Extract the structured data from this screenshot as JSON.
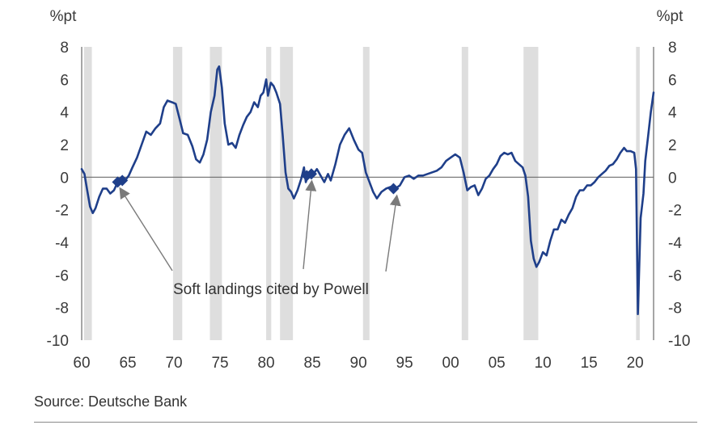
{
  "chart_data": {
    "type": "line",
    "title": "",
    "ylabel_left": "%pt",
    "ylabel_right": "%pt",
    "xlabel": "",
    "ylim": [
      -10,
      8
    ],
    "xlim": [
      1960,
      2022
    ],
    "y_ticks": [
      8,
      6,
      4,
      2,
      0,
      -2,
      -4,
      -6,
      -8,
      -10
    ],
    "y_tick_labels": [
      "8",
      "6",
      "4",
      "2",
      "0",
      "-2",
      "-4",
      "-6",
      "-8",
      "-10"
    ],
    "x_ticks": [
      1960,
      1965,
      1970,
      1975,
      1980,
      1985,
      1990,
      1995,
      2000,
      2005,
      2010,
      2015,
      2020
    ],
    "x_tick_labels": [
      "60",
      "65",
      "70",
      "75",
      "80",
      "85",
      "90",
      "95",
      "00",
      "05",
      "10",
      "15",
      "20"
    ],
    "line_color": "#1f3f8a",
    "recession_color": "#dedede",
    "recessions": [
      [
        1960.25,
        1961.1
      ],
      [
        1969.9,
        1970.9
      ],
      [
        1973.9,
        1975.2
      ],
      [
        1980.0,
        1980.55
      ],
      [
        1981.5,
        1982.9
      ],
      [
        1990.5,
        1991.2
      ],
      [
        2001.2,
        2001.9
      ],
      [
        2007.9,
        2009.5
      ],
      [
        2020.1,
        2020.5
      ]
    ],
    "series": [
      {
        "values": [
          [
            1960.0,
            0.5
          ],
          [
            1960.3,
            0.2
          ],
          [
            1960.6,
            -0.8
          ],
          [
            1960.9,
            -1.8
          ],
          [
            1961.2,
            -2.2
          ],
          [
            1961.5,
            -1.9
          ],
          [
            1961.9,
            -1.2
          ],
          [
            1962.3,
            -0.7
          ],
          [
            1962.7,
            -0.7
          ],
          [
            1963.1,
            -1.0
          ],
          [
            1963.5,
            -0.8
          ],
          [
            1963.9,
            -0.3
          ],
          [
            1964.3,
            -0.2
          ],
          [
            1964.7,
            -0.2
          ],
          [
            1965.1,
            0.1
          ],
          [
            1965.5,
            0.6
          ],
          [
            1966.0,
            1.2
          ],
          [
            1966.5,
            2.0
          ],
          [
            1967.0,
            2.8
          ],
          [
            1967.5,
            2.6
          ],
          [
            1968.0,
            3.0
          ],
          [
            1968.5,
            3.3
          ],
          [
            1968.9,
            4.3
          ],
          [
            1969.3,
            4.7
          ],
          [
            1969.8,
            4.6
          ],
          [
            1970.2,
            4.5
          ],
          [
            1970.6,
            3.6
          ],
          [
            1971.0,
            2.7
          ],
          [
            1971.5,
            2.6
          ],
          [
            1972.0,
            1.9
          ],
          [
            1972.4,
            1.1
          ],
          [
            1972.8,
            0.9
          ],
          [
            1973.2,
            1.4
          ],
          [
            1973.6,
            2.3
          ],
          [
            1974.0,
            4.0
          ],
          [
            1974.4,
            5.0
          ],
          [
            1974.7,
            6.6
          ],
          [
            1974.9,
            6.8
          ],
          [
            1975.2,
            5.5
          ],
          [
            1975.5,
            3.3
          ],
          [
            1975.9,
            2.0
          ],
          [
            1976.3,
            2.1
          ],
          [
            1976.7,
            1.8
          ],
          [
            1977.1,
            2.6
          ],
          [
            1977.5,
            3.2
          ],
          [
            1977.9,
            3.7
          ],
          [
            1978.3,
            4.0
          ],
          [
            1978.7,
            4.6
          ],
          [
            1979.1,
            4.3
          ],
          [
            1979.4,
            5.0
          ],
          [
            1979.7,
            5.2
          ],
          [
            1980.0,
            6.0
          ],
          [
            1980.2,
            5.0
          ],
          [
            1980.5,
            5.8
          ],
          [
            1980.8,
            5.6
          ],
          [
            1981.1,
            5.2
          ],
          [
            1981.5,
            4.5
          ],
          [
            1981.8,
            2.5
          ],
          [
            1982.1,
            0.3
          ],
          [
            1982.4,
            -0.7
          ],
          [
            1982.7,
            -0.9
          ],
          [
            1983.0,
            -1.3
          ],
          [
            1983.4,
            -0.8
          ],
          [
            1983.8,
            -0.1
          ],
          [
            1984.1,
            0.6
          ],
          [
            1984.3,
            -0.3
          ],
          [
            1984.6,
            0.3
          ],
          [
            1985.0,
            0.1
          ],
          [
            1985.5,
            0.5
          ],
          [
            1985.9,
            0.1
          ],
          [
            1986.3,
            -0.3
          ],
          [
            1986.7,
            0.2
          ],
          [
            1987.0,
            -0.2
          ],
          [
            1987.5,
            0.8
          ],
          [
            1988.0,
            2.0
          ],
          [
            1988.5,
            2.6
          ],
          [
            1989.0,
            3.0
          ],
          [
            1989.5,
            2.3
          ],
          [
            1990.0,
            1.7
          ],
          [
            1990.4,
            1.5
          ],
          [
            1990.8,
            0.3
          ],
          [
            1991.2,
            -0.3
          ],
          [
            1991.6,
            -0.9
          ],
          [
            1992.0,
            -1.3
          ],
          [
            1992.5,
            -0.9
          ],
          [
            1993.0,
            -0.7
          ],
          [
            1993.5,
            -0.6
          ],
          [
            1994.0,
            -0.7
          ],
          [
            1994.5,
            -0.5
          ],
          [
            1995.0,
            0.0
          ],
          [
            1995.5,
            0.1
          ],
          [
            1996.0,
            -0.1
          ],
          [
            1996.5,
            0.1
          ],
          [
            1997.0,
            0.1
          ],
          [
            1997.5,
            0.2
          ],
          [
            1998.0,
            0.3
          ],
          [
            1998.5,
            0.4
          ],
          [
            1999.0,
            0.6
          ],
          [
            1999.5,
            1.0
          ],
          [
            2000.0,
            1.2
          ],
          [
            2000.5,
            1.4
          ],
          [
            2001.0,
            1.2
          ],
          [
            2001.4,
            0.3
          ],
          [
            2001.8,
            -0.8
          ],
          [
            2002.2,
            -0.6
          ],
          [
            2002.6,
            -0.5
          ],
          [
            2003.0,
            -1.1
          ],
          [
            2003.4,
            -0.7
          ],
          [
            2003.8,
            -0.1
          ],
          [
            2004.2,
            0.1
          ],
          [
            2004.6,
            0.5
          ],
          [
            2005.0,
            0.8
          ],
          [
            2005.4,
            1.3
          ],
          [
            2005.8,
            1.5
          ],
          [
            2006.2,
            1.4
          ],
          [
            2006.6,
            1.5
          ],
          [
            2007.0,
            1.0
          ],
          [
            2007.4,
            0.8
          ],
          [
            2007.8,
            0.6
          ],
          [
            2008.1,
            0.1
          ],
          [
            2008.4,
            -1.2
          ],
          [
            2008.7,
            -3.9
          ],
          [
            2009.0,
            -5.0
          ],
          [
            2009.3,
            -5.5
          ],
          [
            2009.6,
            -5.2
          ],
          [
            2010.0,
            -4.6
          ],
          [
            2010.4,
            -4.8
          ],
          [
            2010.8,
            -3.9
          ],
          [
            2011.2,
            -3.2
          ],
          [
            2011.6,
            -3.2
          ],
          [
            2012.0,
            -2.6
          ],
          [
            2012.4,
            -2.8
          ],
          [
            2012.8,
            -2.3
          ],
          [
            2013.2,
            -1.9
          ],
          [
            2013.6,
            -1.2
          ],
          [
            2014.0,
            -0.8
          ],
          [
            2014.4,
            -0.8
          ],
          [
            2014.8,
            -0.5
          ],
          [
            2015.2,
            -0.5
          ],
          [
            2015.6,
            -0.3
          ],
          [
            2016.0,
            0.0
          ],
          [
            2016.4,
            0.2
          ],
          [
            2016.8,
            0.4
          ],
          [
            2017.2,
            0.7
          ],
          [
            2017.6,
            0.8
          ],
          [
            2018.0,
            1.1
          ],
          [
            2018.4,
            1.5
          ],
          [
            2018.8,
            1.8
          ],
          [
            2019.1,
            1.6
          ],
          [
            2019.5,
            1.6
          ],
          [
            2019.9,
            1.5
          ],
          [
            2020.1,
            0.5
          ],
          [
            2020.3,
            -8.4
          ],
          [
            2020.6,
            -2.5
          ],
          [
            2020.9,
            -1.0
          ],
          [
            2021.1,
            1.0
          ],
          [
            2021.4,
            2.5
          ],
          [
            2021.7,
            4.0
          ],
          [
            2022.0,
            5.2
          ]
        ]
      }
    ],
    "soft_landing_markers": [
      [
        1963.9,
        -0.3
      ],
      [
        1964.4,
        -0.2
      ],
      [
        1984.4,
        0.1
      ],
      [
        1984.9,
        0.2
      ],
      [
        1993.8,
        -0.7
      ]
    ],
    "annotation": {
      "text": "Soft landings cited by Powell",
      "arrow_targets": [
        [
          1964.4,
          -0.2
        ],
        [
          1984.9,
          0.2
        ],
        [
          1994.1,
          -0.7
        ]
      ]
    }
  },
  "footer": {
    "source": "Source: Deutsche Bank"
  }
}
